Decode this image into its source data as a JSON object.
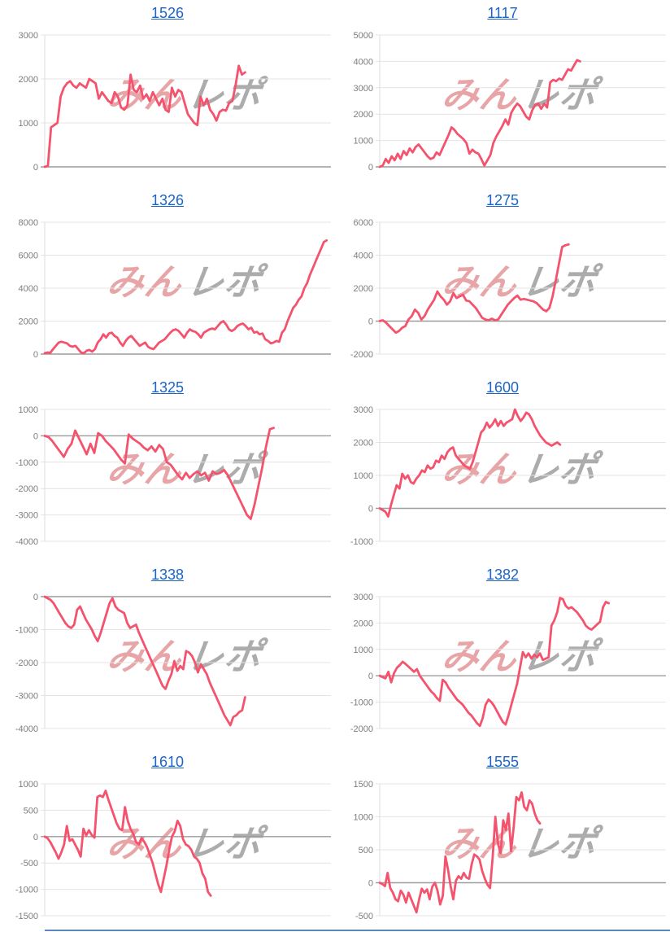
{
  "watermark": {
    "pink": "みん",
    "gray": "レポ"
  },
  "colors": {
    "line": "#f4536e",
    "grid": "#e4e4e4",
    "zero_grid": "#9c9c9c",
    "axis_border": "#dcdcdc",
    "tick_text": "#7d7d7d",
    "title_link": "#1b65c9",
    "bottom_rule": "#5b87c5"
  },
  "chart_data": [
    {
      "type": "line",
      "title": "1526",
      "ylim": [
        0,
        3000
      ],
      "yticks": [
        0,
        1000,
        2000,
        3000
      ],
      "span": 0.7,
      "legend": "none",
      "grid": "horizontal",
      "values": [
        0,
        20,
        900,
        950,
        1000,
        1600,
        1800,
        1900,
        1950,
        1850,
        1800,
        1900,
        1850,
        1800,
        2000,
        1950,
        1900,
        1550,
        1700,
        1600,
        1500,
        1450,
        1700,
        1600,
        1350,
        1300,
        1400,
        2100,
        1750,
        1700,
        1850,
        1550,
        1650,
        1500,
        1700,
        1550,
        1400,
        1550,
        1300,
        1250,
        1800,
        1600,
        1750,
        1700,
        1450,
        1200,
        1100,
        1000,
        950,
        1600,
        1400,
        1550,
        1300,
        1200,
        1050,
        1250,
        1300,
        1280,
        1450,
        1500,
        1850,
        2300,
        2100,
        2150
      ]
    },
    {
      "type": "line",
      "title": "1117",
      "ylim": [
        0,
        5000
      ],
      "yticks": [
        0,
        1000,
        2000,
        3000,
        4000,
        5000
      ],
      "span": 0.7,
      "legend": "none",
      "grid": "horizontal",
      "values": [
        0,
        50,
        300,
        150,
        400,
        250,
        500,
        300,
        600,
        450,
        700,
        550,
        750,
        850,
        700,
        550,
        400,
        300,
        350,
        550,
        450,
        700,
        950,
        1200,
        1500,
        1400,
        1250,
        1150,
        1050,
        900,
        500,
        650,
        550,
        500,
        300,
        50,
        250,
        450,
        900,
        1150,
        1350,
        1550,
        1800,
        1600,
        2050,
        2250,
        2400,
        2300,
        2100,
        1900,
        1800,
        2150,
        2350,
        2400,
        2200,
        2400,
        2250,
        3200,
        3300,
        3250,
        3350,
        3300,
        3500,
        3700,
        3650,
        3850,
        4050,
        4000
      ]
    },
    {
      "type": "line",
      "title": "1326",
      "ylim": [
        0,
        8000
      ],
      "yticks": [
        0,
        2000,
        4000,
        6000,
        8000
      ],
      "span": 0.985,
      "legend": "none",
      "grid": "horizontal",
      "values": [
        50,
        100,
        80,
        300,
        500,
        700,
        750,
        700,
        650,
        500,
        450,
        500,
        300,
        100,
        50,
        200,
        250,
        150,
        300,
        700,
        900,
        1200,
        1000,
        1250,
        1300,
        1100,
        1000,
        700,
        500,
        800,
        1000,
        1100,
        900,
        700,
        500,
        600,
        700,
        450,
        350,
        300,
        500,
        700,
        800,
        900,
        1100,
        1300,
        1450,
        1500,
        1400,
        1200,
        1000,
        1300,
        1500,
        1400,
        1350,
        1200,
        1000,
        1300,
        1400,
        1500,
        1550,
        1500,
        1700,
        1900,
        2000,
        1800,
        1500,
        1400,
        1500,
        1700,
        1800,
        1850,
        1700,
        1500,
        1600,
        1300,
        1350,
        1200,
        1250,
        900,
        800,
        650,
        700,
        800,
        750,
        1300,
        1500,
        2000,
        2400,
        2800,
        3000,
        3300,
        3500,
        4000,
        4300,
        4800,
        5200,
        5600,
        6000,
        6400,
        6800,
        6900
      ]
    },
    {
      "type": "line",
      "title": "1275",
      "ylim": [
        -2000,
        6000
      ],
      "yticks": [
        -2000,
        0,
        2000,
        4000,
        6000
      ],
      "span": 0.66,
      "legend": "none",
      "grid": "horizontal",
      "values": [
        0,
        50,
        -100,
        -300,
        -500,
        -700,
        -600,
        -400,
        -300,
        100,
        300,
        700,
        500,
        100,
        300,
        700,
        1000,
        1300,
        1800,
        1500,
        1300,
        1000,
        1200,
        1700,
        1400,
        1500,
        1600,
        1250,
        1200,
        1000,
        800,
        500,
        200,
        100,
        50,
        150,
        50,
        100,
        400,
        700,
        1000,
        1200,
        1400,
        1550,
        1300,
        1350,
        1300,
        1250,
        1200,
        1100,
        900,
        700,
        600,
        800,
        1500,
        2500,
        3500,
        4500,
        4600,
        4650
      ]
    },
    {
      "type": "line",
      "title": "1325",
      "ylim": [
        -4000,
        1000
      ],
      "yticks": [
        -4000,
        -3000,
        -2000,
        -1000,
        0,
        1000
      ],
      "span": 0.8,
      "legend": "none",
      "grid": "horizontal",
      "values": [
        0,
        -50,
        -200,
        -400,
        -600,
        -800,
        -500,
        -300,
        200,
        -100,
        -400,
        -700,
        -300,
        -650,
        100,
        0,
        -200,
        -350,
        -500,
        -700,
        -900,
        -1050,
        50,
        -100,
        -200,
        -300,
        -450,
        -550,
        -400,
        -600,
        -350,
        -500,
        -1000,
        -1100,
        -1300,
        -1500,
        -1650,
        -1400,
        -1600,
        -1450,
        -1350,
        -1500,
        -1400,
        -1700,
        -1350,
        -1450,
        -1400,
        -1300,
        -1500,
        -1800,
        -2100,
        -2400,
        -2700,
        -3000,
        -3150,
        -2600,
        -1900,
        -1200,
        -400,
        250,
        300
      ]
    },
    {
      "type": "line",
      "title": "1600",
      "ylim": [
        -1000,
        3000
      ],
      "yticks": [
        -1000,
        0,
        1000,
        2000,
        3000
      ],
      "span": 0.63,
      "legend": "none",
      "grid": "horizontal",
      "values": [
        0,
        -50,
        -100,
        -250,
        100,
        400,
        700,
        600,
        1050,
        900,
        1000,
        800,
        750,
        900,
        1000,
        1150,
        1100,
        1300,
        1200,
        1250,
        1450,
        1400,
        1600,
        1500,
        1700,
        1800,
        1850,
        1600,
        1500,
        1400,
        1300,
        1250,
        1200,
        1400,
        1700,
        2000,
        2300,
        2400,
        2600,
        2450,
        2550,
        2700,
        2500,
        2650,
        2500,
        2600,
        2650,
        2700,
        3000,
        2800,
        2650,
        2750,
        2900,
        2850,
        2700,
        2500,
        2350,
        2200,
        2100,
        2000,
        1950,
        1900,
        1950,
        2000,
        1930
      ]
    },
    {
      "type": "line",
      "title": "1338",
      "ylim": [
        -4000,
        0
      ],
      "yticks": [
        -4000,
        -3000,
        -2000,
        -1000,
        0
      ],
      "span": 0.7,
      "legend": "none",
      "grid": "horizontal",
      "values": [
        0,
        -50,
        -100,
        -200,
        -350,
        -500,
        -650,
        -800,
        -900,
        -950,
        -850,
        -400,
        -300,
        -500,
        -700,
        -850,
        -1000,
        -1200,
        -1350,
        -1100,
        -800,
        -500,
        -200,
        -50,
        -300,
        -400,
        -450,
        -500,
        -800,
        -950,
        -900,
        -850,
        -1100,
        -1300,
        -1500,
        -1700,
        -1900,
        -2100,
        -2300,
        -2500,
        -2700,
        -2800,
        -2550,
        -2350,
        -1950,
        -2250,
        -2100,
        -2200,
        -1650,
        -1700,
        -1800,
        -2000,
        -2300,
        -2050,
        -2200,
        -2350,
        -2600,
        -2800,
        -3000,
        -3200,
        -3400,
        -3600,
        -3750,
        -3900,
        -3650,
        -3600,
        -3500,
        -3450,
        -3050
      ]
    },
    {
      "type": "line",
      "title": "1382",
      "ylim": [
        -2000,
        3000
      ],
      "yticks": [
        -2000,
        -1000,
        0,
        1000,
        2000,
        3000
      ],
      "span": 0.8,
      "legend": "none",
      "grid": "horizontal",
      "values": [
        0,
        -50,
        -100,
        150,
        -250,
        100,
        300,
        400,
        530,
        450,
        350,
        250,
        150,
        250,
        0,
        -150,
        -300,
        -450,
        -600,
        -700,
        -850,
        -950,
        -150,
        -250,
        -450,
        -600,
        -750,
        -900,
        -1000,
        -1100,
        -1250,
        -1400,
        -1500,
        -1650,
        -1800,
        -1900,
        -1600,
        -1100,
        -900,
        -1000,
        -1150,
        -1350,
        -1550,
        -1750,
        -1850,
        -1500,
        -1100,
        -700,
        -300,
        300,
        900,
        700,
        850,
        650,
        800,
        700,
        850,
        600,
        650,
        700,
        1900,
        2100,
        2400,
        2950,
        2900,
        2650,
        2550,
        2600,
        2500,
        2400,
        2250,
        2100,
        1900,
        1800,
        1750,
        1850,
        1950,
        2050,
        2600,
        2800,
        2750
      ]
    },
    {
      "type": "line",
      "title": "1610",
      "ylim": [
        -1500,
        1000
      ],
      "yticks": [
        -1500,
        -1000,
        -500,
        0,
        500,
        1000
      ],
      "span": 0.58,
      "legend": "none",
      "grid": "horizontal",
      "values": [
        0,
        -30,
        -100,
        -200,
        -300,
        -420,
        -300,
        -150,
        200,
        -80,
        -50,
        -150,
        -250,
        -380,
        150,
        20,
        120,
        30,
        -20,
        750,
        780,
        750,
        870,
        700,
        550,
        400,
        250,
        150,
        120,
        560,
        300,
        150,
        50,
        -100,
        -150,
        -30,
        -100,
        -200,
        -350,
        -500,
        -700,
        -900,
        -1050,
        -800,
        -550,
        -250,
        0,
        100,
        300,
        200,
        -50,
        -150,
        -180,
        -250,
        -380,
        -420,
        -500,
        -700,
        -800,
        -1050,
        -1120
      ]
    },
    {
      "type": "line",
      "title": "1555",
      "ylim": [
        -500,
        1500
      ],
      "yticks": [
        -500,
        0,
        500,
        1000,
        1500
      ],
      "span": 0.56,
      "legend": "none",
      "grid": "horizontal",
      "values": [
        0,
        -20,
        -50,
        150,
        -80,
        -150,
        -250,
        -280,
        -120,
        -180,
        -300,
        -150,
        -250,
        -350,
        -450,
        -250,
        -90,
        -150,
        -100,
        -250,
        -60,
        0,
        -120,
        -330,
        -200,
        400,
        200,
        -50,
        -250,
        30,
        100,
        60,
        150,
        80,
        60,
        280,
        430,
        400,
        350,
        180,
        60,
        -30,
        -80,
        400,
        1000,
        600,
        450,
        950,
        800,
        1050,
        480,
        850,
        1300,
        1250,
        1370,
        1150,
        1100,
        1250,
        1200,
        1050,
        950,
        900
      ]
    }
  ]
}
